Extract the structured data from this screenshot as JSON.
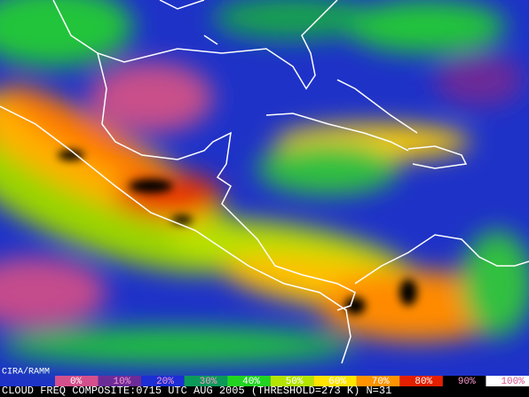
{
  "credit": "CIRA/RAMM",
  "legend": [
    {
      "label": "0%",
      "color": "#d4508c"
    },
    {
      "label": "10%",
      "color": "#6c2c98"
    },
    {
      "label": "20%",
      "color": "#1c2ed4"
    },
    {
      "label": "30%",
      "color": "#0c9a5a"
    },
    {
      "label": "40%",
      "color": "#22d422"
    },
    {
      "label": "50%",
      "color": "#b4e400"
    },
    {
      "label": "60%",
      "color": "#ffe400"
    },
    {
      "label": "70%",
      "color": "#ff9400"
    },
    {
      "label": "80%",
      "color": "#e42000"
    },
    {
      "label": "90%",
      "color": "#000000"
    },
    {
      "label": "100%",
      "color": "#ffffff"
    }
  ],
  "caption": "CLOUD FREQ COMPOSITE:0715 UTC AUG 2005 (THRESHOLD=273 K) N=31"
}
